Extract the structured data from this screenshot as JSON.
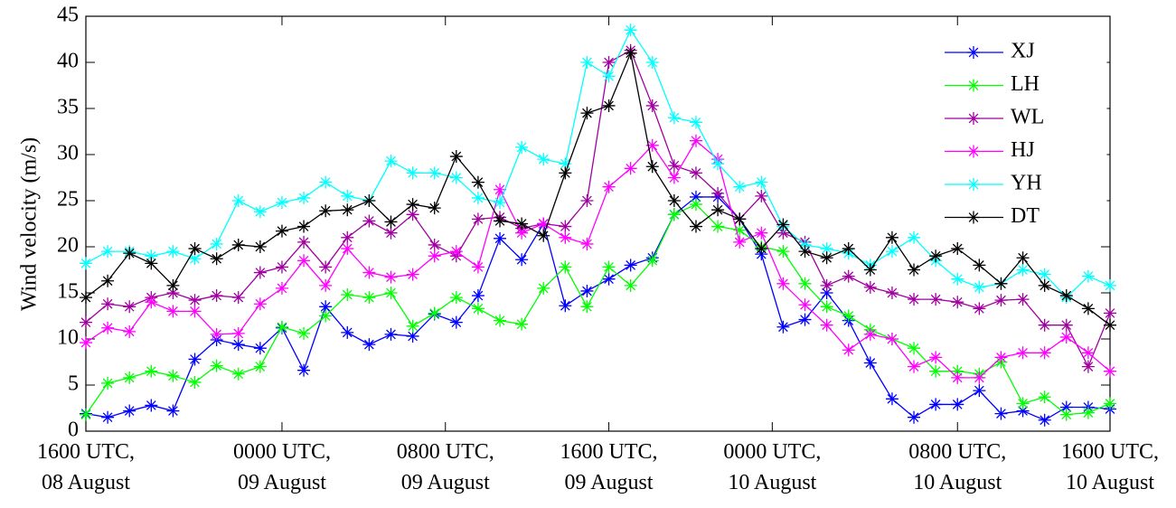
{
  "chart_data": {
    "type": "line",
    "y_label": "Wind velocity (m/s)",
    "x": [
      0,
      1,
      2,
      3,
      4,
      5,
      6,
      7,
      8,
      9,
      10,
      11,
      12,
      13,
      14,
      15,
      16,
      17,
      18,
      19,
      20,
      21,
      22,
      23,
      24,
      25,
      26,
      27,
      28,
      29,
      30,
      31,
      32,
      33,
      34,
      35,
      36,
      37,
      38,
      39,
      40,
      41,
      42,
      43,
      44,
      45,
      46,
      47
    ],
    "xlim": [
      0,
      47
    ],
    "xticks": [
      {
        "value": 0,
        "label": [
          "1600 UTC,",
          "08 August"
        ]
      },
      {
        "value": 9,
        "label": [
          "0000 UTC,",
          "09 August"
        ]
      },
      {
        "value": 16.5,
        "label": [
          "0800 UTC,",
          "09 August"
        ]
      },
      {
        "value": 24,
        "label": [
          "1600 UTC,",
          "09 August"
        ]
      },
      {
        "value": 31.5,
        "label": [
          "0000 UTC,",
          "10 August"
        ]
      },
      {
        "value": 40,
        "label": [
          "0800 UTC,",
          "10 August"
        ]
      },
      {
        "value": 47,
        "label": [
          "1600 UTC,",
          "10 August"
        ]
      }
    ],
    "ylim": [
      0,
      45
    ],
    "yticks": [
      0,
      5,
      10,
      15,
      20,
      25,
      30,
      35,
      40,
      45
    ],
    "grid": false,
    "legend": "upper right",
    "series": [
      {
        "name": "XJ",
        "color": "#0000ff",
        "values": [
          1.9,
          1.5,
          2.2,
          2.8,
          2.2,
          7.8,
          9.9,
          9.4,
          9.0,
          11.2,
          6.6,
          13.5,
          10.7,
          9.4,
          10.5,
          10.3,
          12.7,
          11.8,
          14.7,
          20.9,
          18.6,
          22.5,
          13.6,
          15.2,
          16.5,
          18.0,
          18.8,
          23.5,
          25.4,
          25.4,
          23.0,
          19.2,
          11.3,
          12.1,
          15.0,
          12.0,
          7.4,
          3.5,
          1.5,
          2.9,
          2.9,
          4.4,
          1.9,
          2.2,
          1.2,
          2.6,
          2.6,
          2.4
        ]
      },
      {
        "name": "LH",
        "color": "#00ff00",
        "values": [
          1.8,
          5.2,
          5.8,
          6.5,
          6.0,
          5.3,
          7.1,
          6.2,
          7.0,
          11.3,
          10.6,
          12.5,
          14.8,
          14.5,
          15.0,
          11.4,
          12.8,
          14.5,
          13.3,
          12.0,
          11.6,
          15.5,
          17.8,
          13.5,
          17.8,
          15.8,
          18.5,
          23.5,
          24.6,
          22.2,
          21.8,
          20.0,
          19.5,
          16.0,
          13.5,
          12.5,
          11.0,
          10.0,
          9.0,
          6.5,
          6.5,
          6.2,
          7.5,
          3.0,
          3.7,
          1.8,
          2.0,
          3.0
        ]
      },
      {
        "name": "WL",
        "color": "#a000a0",
        "values": [
          11.8,
          13.8,
          13.5,
          14.5,
          15.0,
          14.2,
          14.7,
          14.5,
          17.2,
          17.8,
          20.5,
          17.8,
          21.0,
          22.8,
          21.5,
          23.5,
          20.2,
          19.0,
          23.0,
          23.2,
          22.0,
          22.5,
          22.2,
          25.0,
          40.0,
          41.3,
          35.3,
          28.8,
          28.0,
          25.8,
          23.0,
          25.5,
          21.5,
          20.5,
          15.8,
          16.8,
          15.6,
          15.0,
          14.3,
          14.3,
          14.0,
          13.3,
          14.2,
          14.3,
          11.5,
          11.5,
          7.0,
          12.8
        ]
      },
      {
        "name": "HJ",
        "color": "#ff00ff",
        "values": [
          9.6,
          11.2,
          10.8,
          14.0,
          13.0,
          13.0,
          10.5,
          10.6,
          13.8,
          15.5,
          18.5,
          15.8,
          19.8,
          17.2,
          16.7,
          17.0,
          19.0,
          19.5,
          17.8,
          26.2,
          21.5,
          22.5,
          21.0,
          20.3,
          26.5,
          28.5,
          31.0,
          27.5,
          31.5,
          29.5,
          20.5,
          21.5,
          16.0,
          13.7,
          11.5,
          8.8,
          10.5,
          10.0,
          7.0,
          8.0,
          5.8,
          5.8,
          8.0,
          8.5,
          8.5,
          10.2,
          8.5,
          6.5
        ]
      },
      {
        "name": "YH",
        "color": "#00ffff",
        "values": [
          18.2,
          19.5,
          19.5,
          19.0,
          19.5,
          18.7,
          20.3,
          25.0,
          23.8,
          24.8,
          25.3,
          27.0,
          25.5,
          25.0,
          29.3,
          28.0,
          28.0,
          27.5,
          25.3,
          24.8,
          30.8,
          29.5,
          29.0,
          40.0,
          38.5,
          43.5,
          40.0,
          34.0,
          33.5,
          29.0,
          26.5,
          27.0,
          22.2,
          20.2,
          19.8,
          19.3,
          18.0,
          19.5,
          21.0,
          18.5,
          16.5,
          15.6,
          16.0,
          17.5,
          17.0,
          14.5,
          16.8,
          15.8
        ]
      },
      {
        "name": "DT",
        "color": "#000000",
        "values": [
          14.5,
          16.3,
          19.3,
          18.2,
          15.8,
          19.8,
          18.7,
          20.2,
          20.0,
          21.7,
          22.2,
          23.9,
          24.0,
          25.0,
          22.7,
          24.6,
          24.2,
          29.8,
          27.0,
          22.8,
          22.5,
          21.2,
          28.0,
          34.5,
          35.3,
          41.0,
          28.7,
          25.0,
          22.2,
          24.0,
          23.0,
          19.8,
          22.4,
          19.5,
          18.8,
          19.8,
          17.5,
          21.0,
          17.5,
          19.0,
          19.8,
          18.0,
          16.0,
          18.8,
          15.8,
          14.7,
          13.3,
          11.5
        ]
      }
    ]
  }
}
